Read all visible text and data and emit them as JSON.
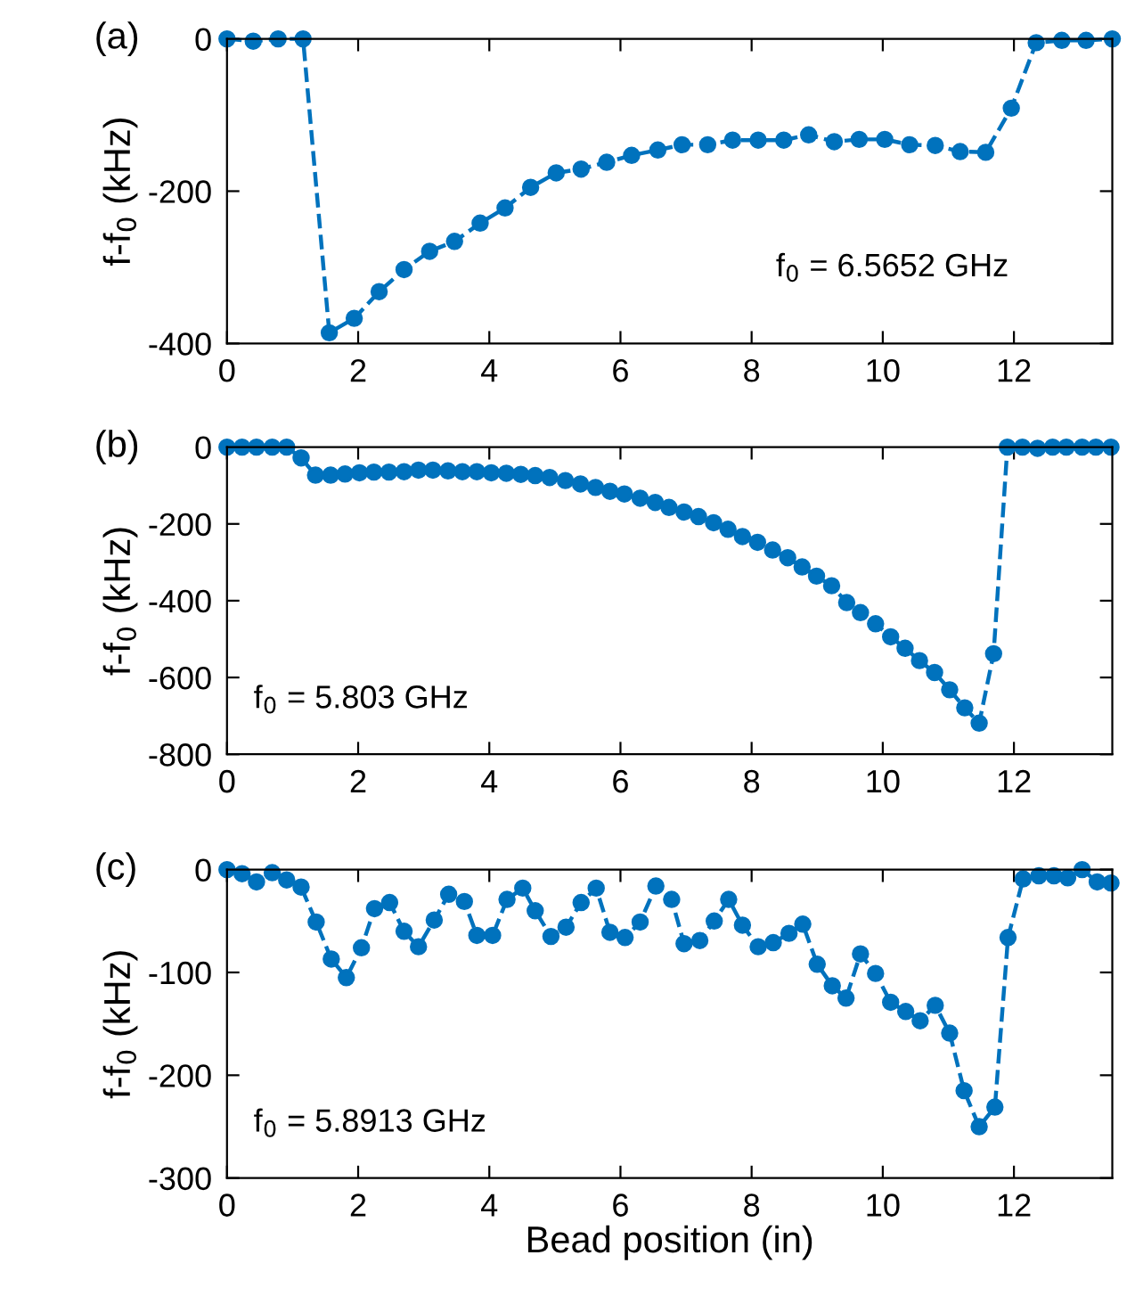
{
  "chart_data": [
    {
      "type": "line",
      "ylabel": "f-f$_{0}$ (kHz)",
      "annotations": [
        "(a)",
        "f$_{0}$ = 6.5652 GHz"
      ],
      "xlim": [
        0,
        13.5
      ],
      "xticks": [
        0,
        2,
        4,
        6,
        8,
        10,
        12
      ],
      "ylim": [
        -400,
        0
      ],
      "yticks": [
        -400,
        -200,
        0
      ],
      "marker": "circle",
      "line_style": "dashed",
      "grid": false,
      "legend": false,
      "series": [
        {
          "color": "#0072bd",
          "x": [
            0,
            0.4,
            0.78,
            1.16,
            1.56,
            1.94,
            2.32,
            2.7,
            3.09,
            3.47,
            3.86,
            4.24,
            4.63,
            5.02,
            5.4,
            5.79,
            6.17,
            6.57,
            6.94,
            7.33,
            7.71,
            8.1,
            8.49,
            8.87,
            9.26,
            9.64,
            10.03,
            10.41,
            10.8,
            11.18,
            11.57,
            11.96,
            12.34,
            12.73,
            13.1,
            13.5
          ],
          "values": [
            0,
            -3,
            0,
            0,
            -386,
            -367,
            -332,
            -303,
            -279,
            -266,
            -242,
            -222,
            -195,
            -176,
            -171,
            -162,
            -153,
            -146,
            -139,
            -139,
            -133,
            -133,
            -133,
            -126,
            -135,
            -132,
            -132,
            -139,
            -140,
            -148,
            -149,
            -91,
            -5,
            -2,
            -2,
            0
          ]
        }
      ]
    },
    {
      "type": "line",
      "ylabel": "f-f$_{0}$ (kHz)",
      "annotations": [
        "(b)",
        "f$_{0}$ = 5.803 GHz"
      ],
      "xlim": [
        0,
        13.5
      ],
      "xticks": [
        0,
        2,
        4,
        6,
        8,
        10,
        12
      ],
      "ylim": [
        -800,
        0
      ],
      "yticks": [
        -800,
        -600,
        -400,
        -200,
        0
      ],
      "marker": "circle",
      "line_style": "dashed",
      "grid": false,
      "legend": false,
      "series": [
        {
          "color": "#0072bd",
          "x": [
            0,
            0.23,
            0.45,
            0.69,
            0.91,
            1.13,
            1.35,
            1.58,
            1.8,
            2.02,
            2.24,
            2.47,
            2.7,
            2.92,
            3.14,
            3.37,
            3.59,
            3.81,
            4.03,
            4.26,
            4.48,
            4.7,
            4.92,
            5.16,
            5.39,
            5.62,
            5.84,
            6.06,
            6.3,
            6.53,
            6.74,
            6.97,
            7.19,
            7.42,
            7.64,
            7.86,
            8.09,
            8.32,
            8.55,
            8.77,
            8.99,
            9.22,
            9.45,
            9.66,
            9.89,
            10.12,
            10.34,
            10.56,
            10.79,
            11.02,
            11.25,
            11.47,
            11.69,
            11.9,
            12.13,
            12.36,
            12.59,
            12.8,
            13.04,
            13.25,
            13.48
          ],
          "values": [
            0,
            0,
            0,
            0,
            0,
            -28,
            -73,
            -73,
            -70,
            -67,
            -65,
            -65,
            -64,
            -60,
            -60,
            -62,
            -64,
            -64,
            -67,
            -68,
            -71,
            -74,
            -79,
            -87,
            -96,
            -105,
            -115,
            -122,
            -133,
            -144,
            -157,
            -169,
            -181,
            -197,
            -214,
            -233,
            -248,
            -268,
            -288,
            -312,
            -336,
            -361,
            -405,
            -431,
            -460,
            -494,
            -524,
            -556,
            -587,
            -632,
            -679,
            -719,
            -538,
            0,
            0,
            -3,
            0,
            0,
            0,
            0,
            0
          ]
        }
      ]
    },
    {
      "type": "line",
      "xlabel": "Bead position (in)",
      "ylabel": "f-f$_{0}$ (kHz)",
      "annotations": [
        "(c)",
        "f$_{0}$ = 5.8913 GHz"
      ],
      "xlim": [
        0,
        13.5
      ],
      "xticks": [
        0,
        2,
        4,
        6,
        8,
        10,
        12
      ],
      "ylim": [
        -300,
        0
      ],
      "yticks": [
        -300,
        -200,
        -100,
        0
      ],
      "marker": "circle",
      "line_style": "dashed",
      "grid": false,
      "legend": false,
      "series": [
        {
          "color": "#0072bd",
          "x": [
            0,
            0.23,
            0.45,
            0.69,
            0.91,
            1.13,
            1.36,
            1.59,
            1.82,
            2.05,
            2.25,
            2.48,
            2.7,
            2.92,
            3.16,
            3.38,
            3.62,
            3.81,
            4.05,
            4.27,
            4.51,
            4.7,
            4.94,
            5.17,
            5.4,
            5.63,
            5.84,
            6.07,
            6.3,
            6.54,
            6.78,
            6.97,
            7.21,
            7.43,
            7.65,
            7.86,
            8.1,
            8.33,
            8.57,
            8.78,
            9.0,
            9.23,
            9.44,
            9.66,
            9.89,
            10.12,
            10.35,
            10.57,
            10.8,
            11.02,
            11.24,
            11.47,
            11.71,
            11.91,
            12.14,
            12.38,
            12.61,
            12.82,
            13.04,
            13.27,
            13.48
          ],
          "values": [
            0,
            -4,
            -12,
            -3,
            -10,
            -17,
            -51,
            -87,
            -105,
            -76,
            -38,
            -32,
            -60,
            -75,
            -49,
            -24,
            -31,
            -64,
            -64,
            -29,
            -18,
            -40,
            -65,
            -56,
            -32,
            -18,
            -61,
            -66,
            -51,
            -16,
            -29,
            -72,
            -69,
            -50,
            -29,
            -54,
            -75,
            -71,
            -62,
            -53,
            -92,
            -113,
            -125,
            -82,
            -101,
            -129,
            -138,
            -147,
            -132,
            -159,
            -215,
            -250,
            -231,
            -66,
            -9,
            -6,
            -6,
            -8,
            0,
            -12,
            -13
          ]
        }
      ]
    }
  ]
}
